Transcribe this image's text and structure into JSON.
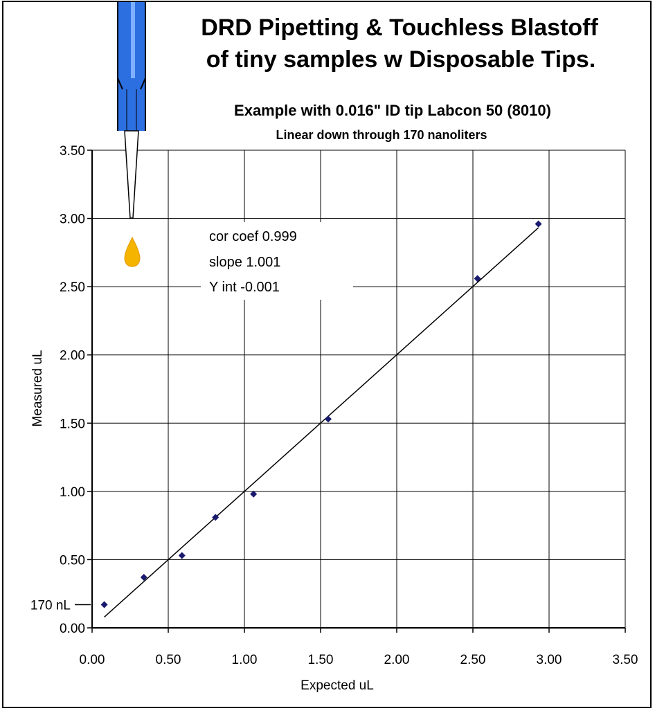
{
  "chart_data": {
    "type": "scatter",
    "title_line1": "DRD Pipetting & Touchless Blastoff",
    "title_line2": "of tiny samples w Disposable Tips.",
    "subtitle": "Example with 0.016\" ID tip Labcon 50 (8010)",
    "subtitle2": "Linear down through 170 nanoliters",
    "xlabel": "Expected uL",
    "ylabel": "Measured uL",
    "xlim": [
      0,
      3.5
    ],
    "ylim": [
      0,
      3.5
    ],
    "xticks": [
      "0.00",
      "0.50",
      "1.00",
      "1.50",
      "2.00",
      "2.50",
      "3.00",
      "3.50"
    ],
    "yticks": [
      "0.00",
      "0.50",
      "1.00",
      "1.50",
      "2.00",
      "2.50",
      "3.00",
      "3.50"
    ],
    "grid": true,
    "points": [
      {
        "x": 0.08,
        "y": 0.17
      },
      {
        "x": 0.34,
        "y": 0.37
      },
      {
        "x": 0.59,
        "y": 0.53
      },
      {
        "x": 0.81,
        "y": 0.81
      },
      {
        "x": 1.06,
        "y": 0.98
      },
      {
        "x": 1.55,
        "y": 1.53
      },
      {
        "x": 2.53,
        "y": 2.56
      },
      {
        "x": 2.93,
        "y": 2.96
      }
    ],
    "marker_color": "#1a1a6e",
    "trendline": {
      "x_start": 0.08,
      "x_end": 2.93,
      "slope": 1.001,
      "intercept": -0.001
    },
    "stats": {
      "cor_coef": "cor coef  0.999",
      "slope": "slope  1.001",
      "y_int": "Y int -0.001"
    },
    "annotation": {
      "label": "170 nL",
      "y": 0.17
    },
    "illustration": {
      "tip_color": "#2c6fe0",
      "drop_color": "#f5b400"
    }
  }
}
